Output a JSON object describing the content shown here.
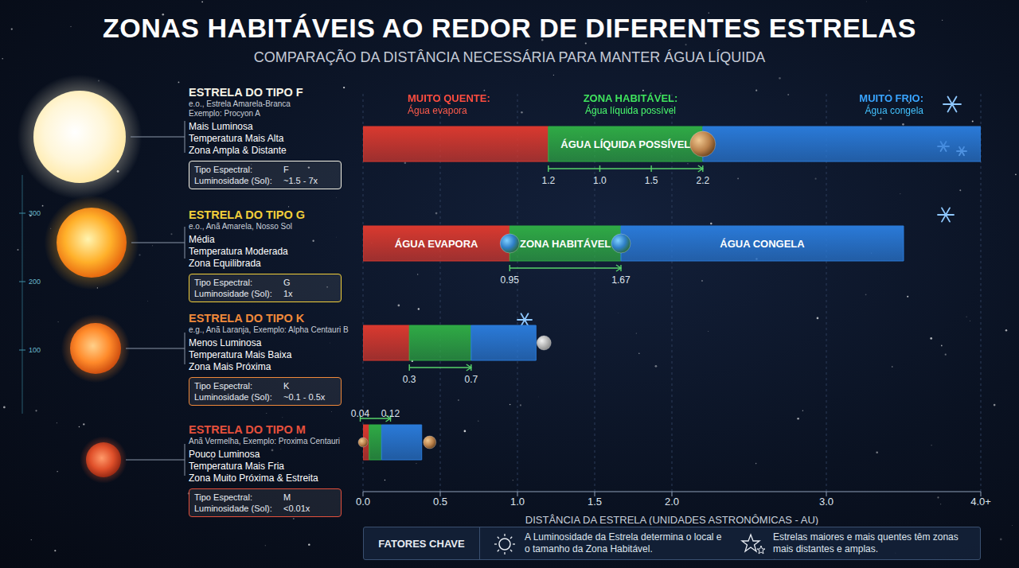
{
  "chart_data": {
    "type": "bar",
    "orientation": "horizontal",
    "stacked": true,
    "title": "ZONAS HABITÁVEIS AO REDOR DE DIFERENTES ESTRELAS",
    "subtitle": "COMPARAÇÃO DA DISTÂNCIA NECESSÁRIA PARA MANTER ÁGUA LÍQUIDA",
    "categories": [
      "ESTRELA DO TIPO F",
      "ESTRELA DO TIPO G",
      "ESTRELA DO TIPO K",
      "ESTRELA DO TIPO M"
    ],
    "series": [
      {
        "name": "MUITO QUENTE:",
        "description": "Água evapora",
        "color": "#d9392f",
        "values": [
          1.2,
          0.95,
          0.3,
          0.04
        ]
      },
      {
        "name": "ZONA HABITÁVEL:",
        "description": "Água líquida possível",
        "color": "#2faa45",
        "values": [
          1.0,
          0.72,
          0.4,
          0.08
        ]
      },
      {
        "name": "MUITO FRIO:",
        "description": "Água congela",
        "color": "#2a7ad8",
        "values": [
          1.8,
          1.83,
          0.42,
          0.26
        ]
      }
    ],
    "segment_labels": [
      [
        null,
        "ÁGUA LÍQUIDA POSSÍVEL",
        null
      ],
      [
        "ÁGUA EVAPORA",
        "ZONA HABITÁVEL",
        "ÁGUA CONGELA"
      ],
      [
        null,
        null,
        null
      ],
      [
        null,
        null,
        null
      ]
    ],
    "range_labels": [
      [
        "1.2",
        "1.0",
        "1.5",
        "2.2"
      ],
      [
        "0.95",
        "1.67"
      ],
      [
        "0.3",
        "0.7"
      ],
      [
        "0.04",
        "0.12"
      ]
    ],
    "xlim": [
      0,
      4
    ],
    "xticks": [
      {
        "value": 0,
        "label": "0.0"
      },
      0.5,
      {
        "value": 1,
        "label": "1.0"
      },
      1.5,
      {
        "value": 2,
        "label": "2.0"
      },
      {
        "value": 3,
        "label": "3.0"
      },
      {
        "value": 4,
        "label": "4.0+"
      }
    ],
    "x_label": "DISTÂNCIA DA ESTRELA (UNIDADES ASTRONÔMICAS - AU)",
    "grid": true,
    "tick_labels": "x"
  },
  "stars": [
    {
      "examples": [
        "e.o., Estrela Amarela-Branca",
        "Exemplo: Procyon A"
      ],
      "traits": [
        "Mais Luminosa",
        "Temperatura Mais Alta",
        "Zona Ampla & Distante"
      ],
      "spectral_label": "Tipo Espectral:",
      "spectral_type": "F",
      "luminosity_label": "Luminosidade (Sol):",
      "luminosity": "~1.5 - 7x",
      "color": "#f5f3e6"
    },
    {
      "examples": [
        "e.o., Anã Amarela, Nosso Sol"
      ],
      "traits": [
        "Média",
        "Temperatura Moderada",
        "Zona Equilibrada"
      ],
      "spectral_label": "Tipo Espectral:",
      "spectral_type": "G",
      "luminosity_label": "Luminosidade (Sol):",
      "luminosity": "1x",
      "color": "#f2cf3a"
    },
    {
      "examples": [
        "e.g., Anã Laranja, Exemplo: Alpha Centauri B"
      ],
      "traits": [
        "Menos Luminosa",
        "Temperatura Mais Baixa",
        "Zona Mais Próxima"
      ],
      "spectral_label": "Tipo Espectral:",
      "spectral_type": "K",
      "luminosity_label": "Luminosidade (Sol):",
      "luminosity": "~0.1 - 0.5x",
      "color": "#f0893a"
    },
    {
      "examples": [
        "Anã Vermelha, Exemplo: Proxima Centauri"
      ],
      "traits": [
        "Pouco Luminosa",
        "Temperatura Mais Fria",
        "Zona Muito Próxima & Estreita"
      ],
      "spectral_label": "Tipo Espectral:",
      "spectral_type": "M",
      "luminosity_label": "Luminosidade (Sol):",
      "luminosity": "<0.01x",
      "color": "#e5503c"
    }
  ],
  "side_scale": [
    300,
    200,
    100
  ],
  "key_factors": {
    "title": "FATORES CHAVE",
    "items": [
      "A Luminosidade da Estrela determina o local e o tamanho da Zona Habitável.",
      "Estrelas maiores e mais quentes têm zonas mais distantes e amplas."
    ]
  }
}
